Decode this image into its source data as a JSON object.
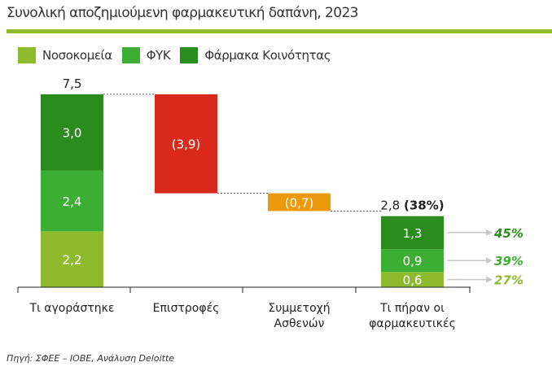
{
  "title": "Συνολική αποζημιούμενη φαρμακευτική δαπάνη, 2023",
  "source": "Πηγή: ΣΦΕΕ – ΙΟΒΕ, Ανάλυση Deloitte",
  "colors": {
    "hospitals": "#8dbb2d",
    "fyk": "#3cae33",
    "community": "#2a8c1c",
    "negative": "#d9291c",
    "patients": "#ec9a0c",
    "rule": "#8dbb2d"
  },
  "chart_data": {
    "type": "waterfall",
    "legend": [
      {
        "name": "Νοσοκομεία",
        "color": "#8dbb2d"
      },
      {
        "name": "ΦΥΚ",
        "color": "#3cae33"
      },
      {
        "name": "Φάρμακα Κοινότητας",
        "color": "#2a8c1c"
      }
    ],
    "categories": [
      [
        "Τι αγοράστηκε"
      ],
      [
        "Επιστροφές"
      ],
      [
        "Συμμετοχή",
        "Ασθενών"
      ],
      [
        "Τι πήραν οι",
        "φαρμακευτικές"
      ]
    ],
    "purchased": {
      "segments": [
        {
          "series": "Νοσοκομεία",
          "value": 2.2,
          "label": "2,2"
        },
        {
          "series": "ΦΥΚ",
          "value": 2.4,
          "label": "2,4"
        },
        {
          "series": "Φάρμακα Κοινότητας",
          "value": 3.0,
          "label": "3,0"
        }
      ],
      "total_label": "7,5",
      "total": 7.5
    },
    "rebates": {
      "value": -3.9,
      "label": "(3,9)"
    },
    "patient_copay": {
      "value": -0.7,
      "label": "(0,7)"
    },
    "received": {
      "segments": [
        {
          "series": "Νοσοκομεία",
          "value": 0.6,
          "label": "0,6",
          "share": "27%"
        },
        {
          "series": "ΦΥΚ",
          "value": 0.9,
          "label": "0,9",
          "share": "39%"
        },
        {
          "series": "Φάρμακα Κοινότητας",
          "value": 1.3,
          "label": "1,3",
          "share": "45%"
        }
      ],
      "total_label": "2,8",
      "total_share": "(38%)",
      "total": 2.8
    },
    "ylim": [
      0,
      7.5
    ]
  }
}
